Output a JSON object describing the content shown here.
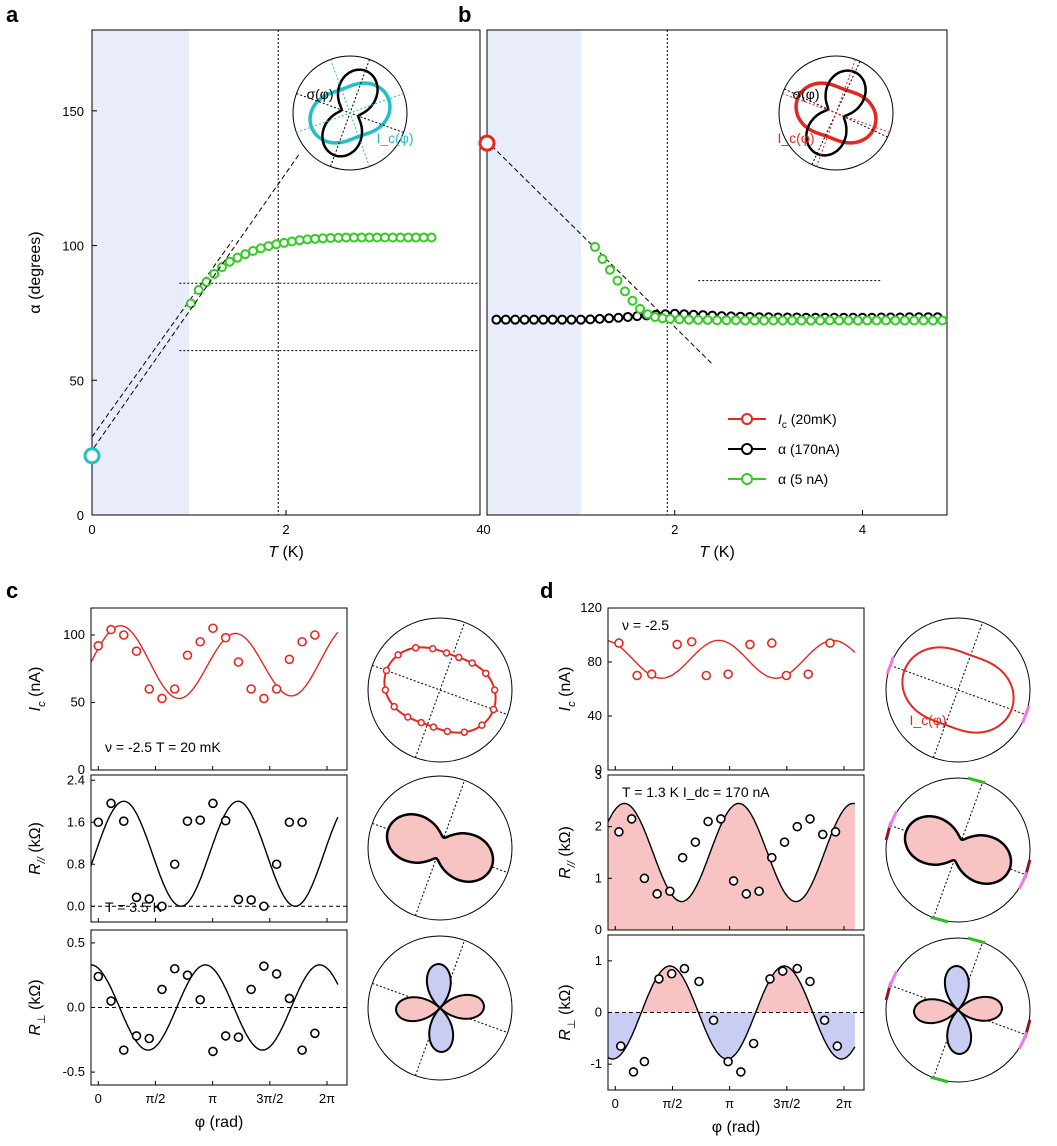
{
  "panel_letters": [
    "a",
    "b",
    "c",
    "d"
  ],
  "colors": {
    "red": "#e8261e",
    "black": "#000000",
    "green": "#33cc22",
    "cyan": "#1fc0c8",
    "shade": "#e8ecfb",
    "pink_fill": "#f8c3c3",
    "blue_fill": "#c9cdf3",
    "magenta": "#ee77ee",
    "darkred": "#8b1a1a",
    "lgreen": "#33bb22"
  },
  "chart_data": [
    {
      "id": "a",
      "type": "scatter",
      "xlabel": "T (K)",
      "ylabel": "α (degrees)",
      "xlim": [
        0,
        4
      ],
      "ylim": [
        0,
        180
      ],
      "xticks": [
        0,
        2,
        4
      ],
      "yticks": [
        0,
        50,
        100,
        150
      ],
      "shaded_x": [
        0,
        1.0
      ],
      "vline": 1.92,
      "hlines": [
        {
          "y": 86,
          "x": [
            0.9,
            4.2
          ]
        },
        {
          "y": 61,
          "x": [
            0.9,
            4.2
          ]
        }
      ],
      "dashed_line": {
        "x": [
          0,
          1.45
        ],
        "y": [
          29,
          102
        ]
      },
      "series": [
        {
          "name": "α (5 nA)",
          "color": "green",
          "x": [
            1.02,
            1.1,
            1.18,
            1.26,
            1.34,
            1.42,
            1.5,
            1.58,
            1.66,
            1.74,
            1.82,
            1.9,
            1.98,
            2.06,
            2.14,
            2.22,
            2.3,
            2.38,
            2.46,
            2.54,
            2.62,
            2.7,
            2.78,
            2.86,
            2.94,
            3.02,
            3.1,
            3.18,
            3.26,
            3.34,
            3.42,
            3.5
          ],
          "y": [
            78.5,
            83.5,
            86.5,
            89.5,
            92,
            94,
            95.5,
            96.8,
            98,
            99,
            99.8,
            100.5,
            101,
            101.5,
            102,
            102.3,
            102.5,
            102.7,
            102.8,
            102.9,
            103,
            103,
            103,
            103,
            103,
            103,
            103,
            103,
            103,
            103,
            103,
            103
          ]
        },
        {
          "name": "I_c (20mK)",
          "color": "cyan",
          "x": [
            0
          ],
          "y": [
            22
          ],
          "big": true
        }
      ],
      "inset": {
        "sigma_label": "σ(φ)",
        "ic_label": "I_c(φ)"
      }
    },
    {
      "id": "b",
      "type": "scatter",
      "xlabel": "T (K)",
      "ylabel": "",
      "xlim": [
        0,
        4.9
      ],
      "ylim": [
        0,
        180
      ],
      "xticks": [
        0,
        2,
        4
      ],
      "shaded_x": [
        0,
        1.0
      ],
      "vline": 1.92,
      "hlines": [
        {
          "y": 87,
          "x": [
            2.25,
            4.2
          ]
        }
      ],
      "dashed_line": {
        "x": [
          0.05,
          2.4
        ],
        "y": [
          137,
          56
        ]
      },
      "series": [
        {
          "name": "α (170nA)",
          "color": "black",
          "x": [
            0.1,
            0.2,
            0.3,
            0.4,
            0.5,
            0.6,
            0.7,
            0.8,
            0.9,
            1.0,
            1.1,
            1.2,
            1.3,
            1.4,
            1.5,
            1.6,
            1.7,
            1.8,
            1.9,
            2.0,
            2.1,
            2.2,
            2.3,
            2.4,
            2.5,
            2.6,
            2.7,
            2.8,
            2.9,
            3.0,
            3.1,
            3.2,
            3.3,
            3.4,
            3.5,
            3.6,
            3.7,
            3.8,
            3.9,
            4.0,
            4.1,
            4.2,
            4.3,
            4.4,
            4.5,
            4.6,
            4.7,
            4.8
          ],
          "y": [
            72.5,
            72.5,
            72.5,
            72.5,
            72.5,
            72.5,
            72.5,
            72.5,
            72.5,
            72.5,
            72.6,
            72.8,
            73,
            73.2,
            73.5,
            73.8,
            74.1,
            74.3,
            74.5,
            74.7,
            74.5,
            74.3,
            74.2,
            74,
            73.8,
            73.7,
            73.6,
            73.5,
            73.4,
            73.4,
            73.3,
            73.3,
            73.3,
            73.2,
            73.2,
            73.2,
            73.2,
            73.2,
            73.2,
            73.2,
            73.2,
            73.3,
            73.3,
            73.3,
            73.4,
            73.4,
            73.4,
            73.4
          ]
        },
        {
          "name": "α (5 nA)",
          "color": "green",
          "x": [
            1.15,
            1.23,
            1.31,
            1.39,
            1.47,
            1.55,
            1.63,
            1.71,
            1.79,
            1.87,
            1.95,
            2.05,
            2.15,
            2.25,
            2.35,
            2.45,
            2.55,
            2.65,
            2.75,
            2.85,
            2.95,
            3.05,
            3.15,
            3.25,
            3.35,
            3.45,
            3.55,
            3.65,
            3.75,
            3.85,
            3.95,
            4.05,
            4.15,
            4.25,
            4.35,
            4.45,
            4.55,
            4.65,
            4.75,
            4.85
          ],
          "y": [
            99.5,
            95,
            91,
            87,
            83,
            79.5,
            76.5,
            74.5,
            73.5,
            73,
            72.8,
            72.6,
            72.5,
            72.4,
            72.4,
            72.3,
            72.3,
            72.3,
            72.2,
            72.2,
            72.2,
            72.2,
            72.2,
            72.2,
            72.2,
            72.2,
            72.2,
            72.2,
            72.2,
            72.2,
            72.2,
            72.2,
            72.2,
            72.2,
            72.2,
            72.2,
            72.2,
            72.2,
            72.2,
            72.2
          ]
        },
        {
          "name": "I_c (20mK)",
          "color": "red",
          "x": [
            0
          ],
          "y": [
            138
          ],
          "big": true
        }
      ],
      "legend": [
        {
          "label_main": "I",
          "label_sub": "c",
          "label_rest": " (20mK)",
          "color": "red"
        },
        {
          "label_main": "α (170nA)",
          "label_sub": "",
          "label_rest": "",
          "color": "black"
        },
        {
          "label_main": "α (5 nA)",
          "label_sub": "",
          "label_rest": "",
          "color": "green"
        }
      ],
      "legend_position": "bottom-right",
      "inset": {
        "sigma_label": "σ(φ)",
        "ic_label": "I_c(φ)"
      }
    },
    {
      "id": "c1",
      "type": "line+scatter",
      "ylabel": "I_c (nA)",
      "ylim": [
        0,
        120
      ],
      "yticks": [
        0,
        50,
        100
      ],
      "xlim": [
        0,
        6.283
      ],
      "annotation": "ν = -2.5     T = 20 mK",
      "color": "red",
      "fit": {
        "mean": 79,
        "amp2": 25,
        "phase2": 0.62,
        "amp1": 3,
        "phase1": 0.3
      },
      "points": {
        "x": [
          0,
          0.35,
          0.7,
          1.05,
          1.4,
          1.75,
          2.1,
          2.45,
          2.8,
          3.15,
          3.5,
          3.85,
          4.2,
          4.55,
          4.9,
          5.25,
          5.6,
          5.95
        ],
        "y": [
          92,
          104,
          100,
          88,
          60,
          53,
          60,
          85,
          95,
          105,
          98,
          80,
          60,
          53,
          60,
          82,
          95,
          100
        ]
      }
    },
    {
      "id": "c2",
      "type": "line+scatter",
      "ylabel": "R_// (kΩ)",
      "ylim": [
        -0.3,
        2.5
      ],
      "yticks": [
        0,
        0.8,
        1.6,
        2.4
      ],
      "ytick_labels": [
        "0.0",
        "0.8",
        "1.6",
        "2.4"
      ],
      "xlim": [
        0,
        6.283
      ],
      "annotation": "T = 3.5 K",
      "color": "black",
      "fit": {
        "mean": 1.0,
        "amp2": 1.0,
        "phase2": 0.7
      },
      "points": {
        "x": [
          0,
          0.35,
          0.7,
          1.05,
          1.4,
          1.75,
          2.1,
          2.45,
          2.8,
          3.15,
          3.5,
          3.85,
          4.2,
          4.55,
          4.9,
          5.25,
          5.6
        ],
        "y": [
          1.6,
          1.96,
          1.62,
          0.17,
          0.14,
          0.0,
          0.8,
          1.62,
          1.64,
          1.96,
          1.63,
          0.13,
          0.12,
          0.0,
          0.8,
          1.6,
          1.6
        ]
      }
    },
    {
      "id": "c3",
      "type": "line+scatter",
      "ylabel": "R_⊥ (kΩ)",
      "ylim": [
        -0.6,
        0.6
      ],
      "yticks": [
        -0.5,
        0,
        0.5
      ],
      "ytick_labels": [
        "-0.5",
        "0.0",
        "0.5"
      ],
      "xlim": [
        0,
        6.283
      ],
      "xticks": [
        "0",
        "π/2",
        "π",
        "3π/2",
        "2π"
      ],
      "xlabel": "φ (rad)",
      "color": "black",
      "fit": {
        "mean": 0,
        "amp2": 0.33,
        "phase2": -0.2
      },
      "points": {
        "x": [
          0,
          0.35,
          0.7,
          1.05,
          1.4,
          1.75,
          2.1,
          2.45,
          2.8,
          3.15,
          3.5,
          3.85,
          4.2,
          4.55,
          4.9,
          5.25,
          5.6,
          5.95
        ],
        "y": [
          0.24,
          0.05,
          -0.33,
          -0.22,
          -0.24,
          0.14,
          0.3,
          0.25,
          0.06,
          -0.34,
          -0.22,
          -0.23,
          0.14,
          0.32,
          0.26,
          0.07,
          -0.33,
          -0.2
        ]
      }
    },
    {
      "id": "d1",
      "type": "line+scatter",
      "ylabel": "I_c (nA)",
      "ylim": [
        0,
        120
      ],
      "yticks": [
        0,
        40,
        80,
        120
      ],
      "xlim": [
        0,
        6.283
      ],
      "annotation": "ν = -2.5",
      "color": "red",
      "fit": {
        "mean": 82,
        "amp2": 14,
        "phase2": -0.3
      },
      "points": {
        "x": [
          0.1,
          0.6,
          1.0,
          1.7,
          2.1,
          2.5,
          3.1,
          3.7,
          4.3,
          4.7,
          5.3,
          5.9
        ],
        "y": [
          94,
          70,
          71,
          93,
          95,
          70,
          71,
          93,
          94,
          70,
          71,
          94
        ]
      }
    },
    {
      "id": "d2",
      "type": "area+scatter",
      "ylabel": "R_// (kΩ)",
      "ylim": [
        0,
        3
      ],
      "yticks": [
        0,
        1,
        2,
        3
      ],
      "xlim": [
        0,
        6.283
      ],
      "annotation": "T = 1.3 K    I_dc = 170 nA",
      "color": "black",
      "fit": {
        "mean": 1.5,
        "amp2": 0.95,
        "phase2": 0.25
      },
      "points": {
        "x": [
          0.1,
          0.45,
          0.8,
          1.15,
          1.5,
          1.85,
          2.2,
          2.55,
          2.9,
          3.25,
          3.6,
          3.95,
          4.3,
          4.65,
          5.0,
          5.35,
          5.7,
          6.05
        ],
        "y": [
          1.9,
          2.15,
          1.0,
          0.7,
          0.75,
          1.4,
          1.7,
          2.1,
          2.15,
          0.95,
          0.7,
          0.75,
          1.4,
          1.7,
          2.0,
          2.15,
          1.85,
          1.9
        ]
      }
    },
    {
      "id": "d3",
      "type": "area+scatter",
      "ylabel": "R_⊥ (kΩ)",
      "ylim": [
        -1.5,
        1.5
      ],
      "yticks": [
        -1,
        0,
        1
      ],
      "xlim": [
        0,
        6.283
      ],
      "xticks": [
        "0",
        "π/2",
        "π",
        "3π/2",
        "2π"
      ],
      "xlabel": "φ (rad)",
      "color": "black",
      "fit": {
        "mean": 0,
        "amp2": 0.9,
        "phase2": 1.5
      },
      "points": {
        "x": [
          0.15,
          0.5,
          0.8,
          1.2,
          1.55,
          1.9,
          2.3,
          2.7,
          3.1,
          3.45,
          3.8,
          4.25,
          4.6,
          5.0,
          5.35,
          5.75,
          6.1
        ],
        "y": [
          -0.65,
          -1.15,
          -0.95,
          0.65,
          0.75,
          0.85,
          0.6,
          -0.15,
          -0.95,
          -1.15,
          -0.6,
          0.65,
          0.8,
          0.85,
          0.6,
          -0.15,
          -0.65
        ]
      }
    }
  ]
}
